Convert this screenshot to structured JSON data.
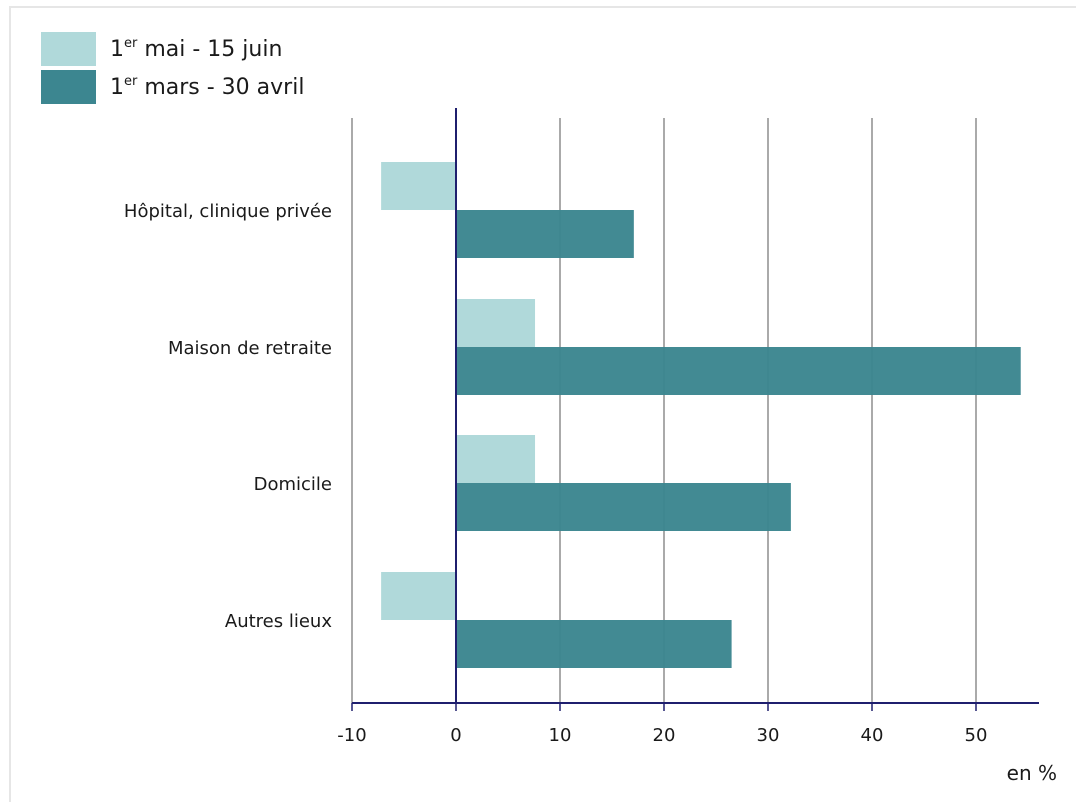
{
  "legend": [
    {
      "ordinal": "1",
      "sup": "er",
      "rest": " mai - 15 juin",
      "color": "#b0d9da"
    },
    {
      "ordinal": "1",
      "sup": "er",
      "rest": " mars - 30 avril",
      "color": "#3c8690"
    }
  ],
  "chart_data": {
    "type": "bar",
    "orientation": "horizontal",
    "categories": [
      "Hôpital, clinique privée",
      "Maison de retraite",
      "Domicile",
      "Autres lieux"
    ],
    "series": [
      {
        "name": "1er mai - 15 juin",
        "color": "#b0d9da",
        "values": [
          -7.2,
          7.6,
          7.6,
          -7.2
        ]
      },
      {
        "name": "1er mars - 30 avril",
        "color": "#3c8690",
        "values": [
          17.1,
          54.3,
          32.2,
          26.5
        ]
      }
    ],
    "x_ticks": [
      "-10",
      "0",
      "10",
      "20",
      "30",
      "40",
      "50"
    ],
    "x_tick_values": [
      -10,
      0,
      10,
      20,
      30,
      40,
      50
    ],
    "xlim": [
      -10,
      56.4
    ],
    "unit_label": "en %",
    "grid": true
  }
}
